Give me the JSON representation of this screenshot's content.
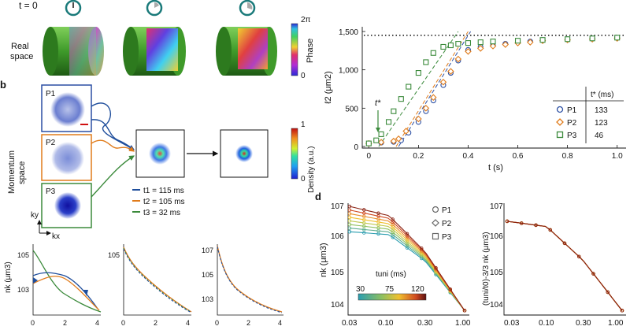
{
  "panel_a": {
    "t0_label": "t = 0",
    "row_label_1": "Real",
    "row_label_2": "space",
    "phase_label": "Phase",
    "phase_max": "2π",
    "phase_min": "0"
  },
  "panel_b": {
    "letter": "b",
    "row_label_1": "Momentum",
    "row_label_2": "space",
    "p1": "P1",
    "p2": "P2",
    "p3": "P3",
    "ky": "ky",
    "kx": "kx",
    "density_label": "Density (a.u.)",
    "density_max": "1",
    "density_min": "0",
    "legend": [
      {
        "label": "t1 = 115 ms",
        "color": "#1f4e9c"
      },
      {
        "label": "t2 = 105 ms",
        "color": "#e07b1a"
      },
      {
        "label": "t3 = 32 ms",
        "color": "#3b8a3b"
      }
    ]
  },
  "panel_b_bottom": {
    "ylabel": "nk (μm3)",
    "plots": [
      {
        "yticks": [
          "105",
          "103"
        ],
        "xticks": [
          "0",
          "2",
          "4"
        ]
      },
      {
        "yticks": [
          "105"
        ],
        "xticks": [
          "0",
          "2",
          "4"
        ]
      },
      {
        "yticks": [
          "107",
          "105",
          "103"
        ],
        "xticks": [
          "0",
          "2",
          "4"
        ]
      }
    ]
  },
  "panel_c": {
    "ylabel": "ℓ2 (μm2)",
    "xlabel": "t (s)",
    "tstar_arrow": "t*",
    "yticks": [
      "0",
      "500",
      "1,000",
      "1,500"
    ],
    "xticks": [
      "0",
      "0.2",
      "0.4",
      "0.6",
      "0.8",
      "1.0"
    ],
    "table_header": "t* (ms)",
    "table": [
      {
        "name": "P1",
        "value": "133"
      },
      {
        "name": "P2",
        "value": "123"
      },
      {
        "name": "P3",
        "value": "46"
      }
    ]
  },
  "panel_d": {
    "letter": "d",
    "ylabel_left": "nk (μm3)",
    "ylabel_right": "(tuni/t0)-3/3 nk (μm3)",
    "yticks": [
      "107",
      "106",
      "105",
      "104"
    ],
    "xticks": [
      "0.03",
      "0.10",
      "0.30",
      "1.00"
    ],
    "legend": [
      "P1",
      "P2",
      "P3"
    ],
    "colorbar_title": "tuni (ms)",
    "colorbar_ticks": [
      "30",
      "75",
      "120"
    ]
  },
  "chart_data": [
    {
      "type": "scatter",
      "title": "",
      "xlabel": "t (s)",
      "ylabel": "ℓ2 (μm2)",
      "xlim": [
        -0.02,
        1.02
      ],
      "ylim": [
        0,
        1500
      ],
      "series": [
        {
          "name": "P1",
          "color": "#2b4fa3",
          "x": [
            0.0,
            0.05,
            0.1,
            0.13,
            0.16,
            0.2,
            0.23,
            0.26,
            0.3,
            0.33,
            0.36,
            0.4,
            0.45,
            0.5,
            0.55,
            0.6,
            0.65,
            0.7,
            0.8,
            0.9,
            1.0
          ],
          "values": [
            40,
            50,
            60,
            80,
            180,
            320,
            460,
            600,
            800,
            960,
            1120,
            1260,
            1300,
            1320,
            1340,
            1360,
            1370,
            1390,
            1400,
            1410,
            1420
          ]
        },
        {
          "name": "P2",
          "color": "#e07b1a",
          "x": [
            0.0,
            0.05,
            0.1,
            0.12,
            0.15,
            0.2,
            0.23,
            0.26,
            0.3,
            0.33,
            0.36,
            0.4,
            0.45,
            0.5,
            0.55,
            0.6,
            0.65,
            0.7,
            0.8,
            0.9,
            1.0
          ],
          "values": [
            40,
            55,
            70,
            100,
            200,
            360,
            500,
            640,
            840,
            980,
            1140,
            1240,
            1280,
            1310,
            1330,
            1350,
            1360,
            1380,
            1390,
            1400,
            1410
          ]
        },
        {
          "name": "P3",
          "color": "#3b8a3b",
          "x": [
            0.0,
            0.03,
            0.05,
            0.08,
            0.1,
            0.13,
            0.16,
            0.2,
            0.23,
            0.26,
            0.3,
            0.33,
            0.36,
            0.4,
            0.45,
            0.5,
            0.6,
            0.7,
            0.8,
            0.9,
            1.0
          ],
          "values": [
            40,
            80,
            160,
            320,
            460,
            620,
            780,
            960,
            1100,
            1220,
            1300,
            1320,
            1340,
            1350,
            1360,
            1370,
            1380,
            1390,
            1400,
            1410,
            1420
          ]
        }
      ],
      "reference_line": 1450
    },
    {
      "type": "line",
      "title": "",
      "xlabel": "",
      "ylabel": "nk (μm3)",
      "xscale": "log",
      "yscale": "log",
      "xlim": [
        0.03,
        1.0
      ],
      "ylim": [
        10000,
        10000000
      ],
      "colorbar": {
        "label": "tuni (ms)",
        "range": [
          30,
          120
        ]
      },
      "series": [
        {
          "name": "30 ms",
          "values_at": [
            0.03,
            0.1,
            0.3,
            1.0
          ],
          "values": [
            1800000,
            1500000,
            280000,
            12000
          ]
        },
        {
          "name": "75 ms",
          "values_at": [
            0.03,
            0.1,
            0.3,
            1.0
          ],
          "values": [
            4500000,
            3000000,
            400000,
            12000
          ]
        },
        {
          "name": "120 ms",
          "values_at": [
            0.03,
            0.1,
            0.3,
            1.0
          ],
          "values": [
            9000000,
            5000000,
            500000,
            12000
          ]
        }
      ]
    },
    {
      "type": "line",
      "title": "",
      "xlabel": "",
      "ylabel": "(tuni/t0)-3/3 nk (μm3)",
      "xscale": "log",
      "yscale": "log",
      "xlim": [
        0.03,
        1.0
      ],
      "ylim": [
        10000,
        10000000
      ],
      "series": [
        {
          "name": "collapsed",
          "values_at": [
            0.03,
            0.1,
            0.3,
            1.0
          ],
          "values": [
            3500000,
            2500000,
            300000,
            12000
          ]
        }
      ]
    }
  ]
}
